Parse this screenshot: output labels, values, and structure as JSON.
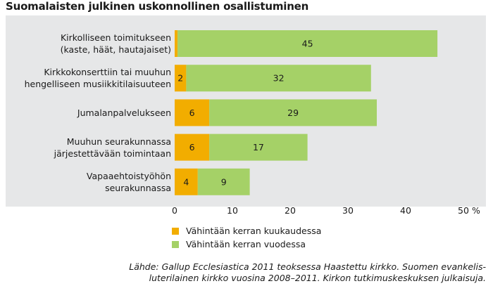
{
  "title": "Suomalaisten julkinen uskonnollinen osallistuminen",
  "chart_data": {
    "type": "bar",
    "orientation": "horizontal",
    "stacked": true,
    "categories": [
      [
        "Kirkolliseen toimitukseen",
        "(kaste, häät, hautajaiset)"
      ],
      [
        "Kirkkokonserttiin tai muuhun",
        "hengelliseen musiikkitilaisuuteen"
      ],
      [
        "Jumalanpalvelukseen"
      ],
      [
        "Muuhun seurakunnassa",
        "järjestettävään toimintaan"
      ],
      [
        "Vapaaehtoistyöhön",
        "seurakunnassa"
      ]
    ],
    "series": [
      {
        "name": "Vähintään kerran kuukaudessa",
        "color": "#f2ad00",
        "values": [
          0.5,
          2,
          6,
          6,
          4
        ],
        "labels": [
          "",
          "2",
          "6",
          "6",
          "4"
        ]
      },
      {
        "name": "Vähintään kerran vuodessa",
        "color": "#a5d167",
        "values": [
          45,
          32,
          29,
          17,
          9
        ],
        "labels": [
          "45",
          "32",
          "29",
          "17",
          "9"
        ]
      }
    ],
    "xticks": [
      "0",
      "10",
      "20",
      "30",
      "40",
      "50"
    ],
    "xunit": "%",
    "xlim": [
      0,
      50
    ],
    "legend_position": "bottom"
  },
  "source_lines": [
    "Lähde: Gallup Ecclesiastica 2011 teoksessa Haastettu kirkko. Suomen evankelis-",
    "luterilainen kirkko vuosina 2008–2011. Kirkon tutkimuskeskuksen julkaisuja."
  ]
}
